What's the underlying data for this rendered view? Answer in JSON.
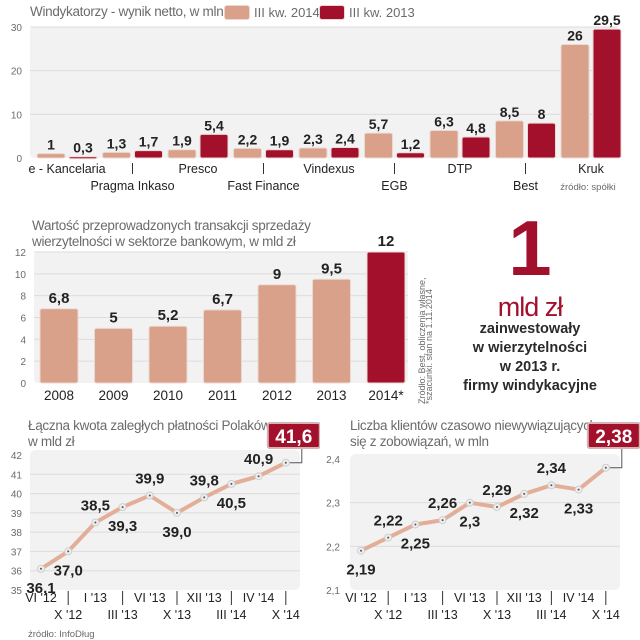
{
  "colors": {
    "light_bar": "#d9a08a",
    "dark_bar": "#a3102b",
    "line": "#e3ae98",
    "plot_bg": "#f2f2f2",
    "grid": "#dcdcdc",
    "text_dark": "#222222",
    "text_gray": "#6b6b6b"
  },
  "headline": {
    "number": "1",
    "unit": "mld zł",
    "lines": [
      "zainwestowały",
      "w wierzytelności",
      "w 2013 r.",
      "firmy windykacyjne"
    ]
  },
  "chart_data": [
    {
      "type": "bar",
      "title": "Windykatorzy - wynik netto, w mln zł",
      "categories": [
        "e - Kancelaria",
        "Pragma Inkaso",
        "Presco",
        "Fast Finance",
        "Vindexus",
        "EGB",
        "DTP",
        "Best",
        "Kruk"
      ],
      "value_labels": [
        [
          "1",
          "0,3"
        ],
        [
          "1,3",
          "1,7"
        ],
        [
          "1,9",
          "5,4"
        ],
        [
          "2,2",
          "1,9"
        ],
        [
          "2,3",
          "2,4"
        ],
        [
          "5,7",
          "1,2"
        ],
        [
          "6,3",
          "4,8"
        ],
        [
          "8,5",
          "8"
        ],
        [
          "26",
          "29,5"
        ]
      ],
      "series": [
        {
          "name": "III kw. 2014",
          "values": [
            1,
            1.3,
            1.9,
            2.2,
            2.3,
            5.7,
            6.3,
            8.5,
            26
          ]
        },
        {
          "name": "III kw. 2013",
          "values": [
            0.3,
            1.7,
            5.4,
            1.9,
            2.4,
            1.2,
            4.8,
            8,
            29.5
          ]
        }
      ],
      "ylim": [
        0,
        30
      ],
      "yticks": [
        "0",
        "10",
        "20",
        "30"
      ],
      "yticks_values": [
        0,
        10,
        20,
        30
      ],
      "grid": true,
      "legend": "top",
      "source": "źródło: spółki"
    },
    {
      "type": "bar",
      "title": "Wartość przeprowadzonych transakcji sprzedaży wierzytelności w sektorze bankowym, w mld zł",
      "title_lines": [
        "Wartość przeprowadzonych transakcji sprzedaży",
        "wierzytelności w sektorze bankowym, w mld zł"
      ],
      "categories": [
        "2008",
        "2009",
        "2010",
        "2011",
        "2012",
        "2013",
        "2014*"
      ],
      "values": [
        6.8,
        5,
        5.2,
        6.7,
        9,
        9.5,
        12
      ],
      "value_labels": [
        "6,8",
        "5",
        "5,2",
        "6,7",
        "9",
        "9,5",
        "12"
      ],
      "highlight_index": 6,
      "ylim": [
        0,
        12
      ],
      "yticks": [
        "0",
        "2",
        "4",
        "6",
        "8",
        "10",
        "12"
      ],
      "yticks_values": [
        0,
        2,
        4,
        6,
        8,
        10,
        12
      ],
      "grid": true,
      "source_lines": [
        "Źródło: Best, obliczenia własne,",
        "*szacunki, stan na 1.11.2014"
      ]
    },
    {
      "type": "line",
      "title": "Łączna kwota zaległych płatności Polaków, w mld zł",
      "title_lines": [
        "Łączna kwota zaległych płatności Polaków,",
        "w mld zł"
      ],
      "x": [
        "VI '12",
        "X '12",
        "I '13",
        "III '13",
        "VI '13",
        "X '13",
        "XII '13",
        "III '14",
        "IV '14",
        "X '14"
      ],
      "values": [
        36.1,
        37.0,
        38.5,
        39.3,
        39.9,
        39.0,
        39.8,
        40.5,
        40.9,
        41.6
      ],
      "value_labels": [
        "36,1",
        "37,0",
        "38,5",
        "39,3",
        "39,9",
        "39,0",
        "39,8",
        "40,5",
        "40,9",
        "41,6"
      ],
      "label_pos": [
        "below",
        "below",
        "above",
        "below",
        "above",
        "below",
        "above",
        "below",
        "above",
        "box"
      ],
      "ylim": [
        35,
        42
      ],
      "yticks": [
        "35",
        "36",
        "37",
        "38",
        "39",
        "40",
        "41",
        "42"
      ],
      "yticks_values": [
        35,
        36,
        37,
        38,
        39,
        40,
        41,
        42
      ],
      "grid": true,
      "source": "źródło: InfoDług"
    },
    {
      "type": "line",
      "title": "Liczba klientów czasowo niewywiązujących się z zobowiązań, w mln",
      "title_lines": [
        "Liczba klientów czasowo niewywiązujących",
        "się z zobowiązań, w mln"
      ],
      "x": [
        "VI '12",
        "X '12",
        "I '13",
        "III '13",
        "VI '13",
        "X '13",
        "XII '13",
        "III '14",
        "IV '14",
        "X '14"
      ],
      "values": [
        2.19,
        2.22,
        2.25,
        2.26,
        2.3,
        2.29,
        2.32,
        2.34,
        2.33,
        2.38
      ],
      "value_labels": [
        "2,19",
        "2,22",
        "2,25",
        "2,26",
        "2,3",
        "2,29",
        "2,32",
        "2,34",
        "2,33",
        "2,38"
      ],
      "label_pos": [
        "below",
        "above",
        "below",
        "above",
        "below",
        "above",
        "below",
        "above",
        "below",
        "box"
      ],
      "ylim": [
        2.1,
        2.4
      ],
      "yticks": [
        "2,1",
        "2,2",
        "2,3",
        "2,4"
      ],
      "yticks_values": [
        2.1,
        2.2,
        2.3,
        2.4
      ],
      "grid": true
    }
  ]
}
